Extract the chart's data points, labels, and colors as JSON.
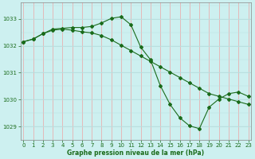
{
  "xlabel": "Graphe pression niveau de la mer (hPa)",
  "background_color": "#cdf0f0",
  "grid_color_v": "#e8b0b0",
  "grid_color_h": "#b8dede",
  "line_color": "#1a6b1a",
  "ylim": [
    1028.5,
    1033.6
  ],
  "xlim": [
    -0.3,
    23.3
  ],
  "yticks": [
    1029,
    1030,
    1031,
    1032,
    1033
  ],
  "xticks": [
    0,
    1,
    2,
    3,
    4,
    5,
    6,
    7,
    8,
    9,
    10,
    11,
    12,
    13,
    14,
    15,
    16,
    17,
    18,
    19,
    20,
    21,
    22,
    23
  ],
  "series1_x": [
    0,
    1,
    2,
    3,
    4,
    5,
    6,
    7,
    8,
    9,
    10,
    11,
    12,
    13,
    14,
    15,
    16,
    17,
    18,
    19,
    20,
    21,
    22,
    23
  ],
  "series1_y": [
    1032.15,
    1032.25,
    1032.45,
    1032.62,
    1032.65,
    1032.68,
    1032.68,
    1032.72,
    1032.85,
    1033.02,
    1033.08,
    1032.78,
    1031.95,
    1031.48,
    1030.52,
    1029.82,
    1029.32,
    1029.02,
    1028.92,
    1029.72,
    1030.02,
    1030.22,
    1030.28,
    1030.12
  ],
  "series2_x": [
    0,
    1,
    2,
    3,
    4,
    5,
    6,
    7,
    8,
    9,
    10,
    11,
    12,
    13,
    14,
    15,
    16,
    17,
    18,
    19,
    20,
    21,
    22,
    23
  ],
  "series2_y": [
    1032.15,
    1032.25,
    1032.45,
    1032.58,
    1032.62,
    1032.58,
    1032.52,
    1032.48,
    1032.38,
    1032.22,
    1032.02,
    1031.82,
    1031.62,
    1031.42,
    1031.22,
    1031.02,
    1030.82,
    1030.62,
    1030.42,
    1030.22,
    1030.12,
    1030.02,
    1029.92,
    1029.82
  ],
  "figsize": [
    3.2,
    2.0
  ],
  "dpi": 100,
  "title_fontsize": 5.5,
  "tick_fontsize": 5,
  "xlabel_fontsize": 5.5
}
